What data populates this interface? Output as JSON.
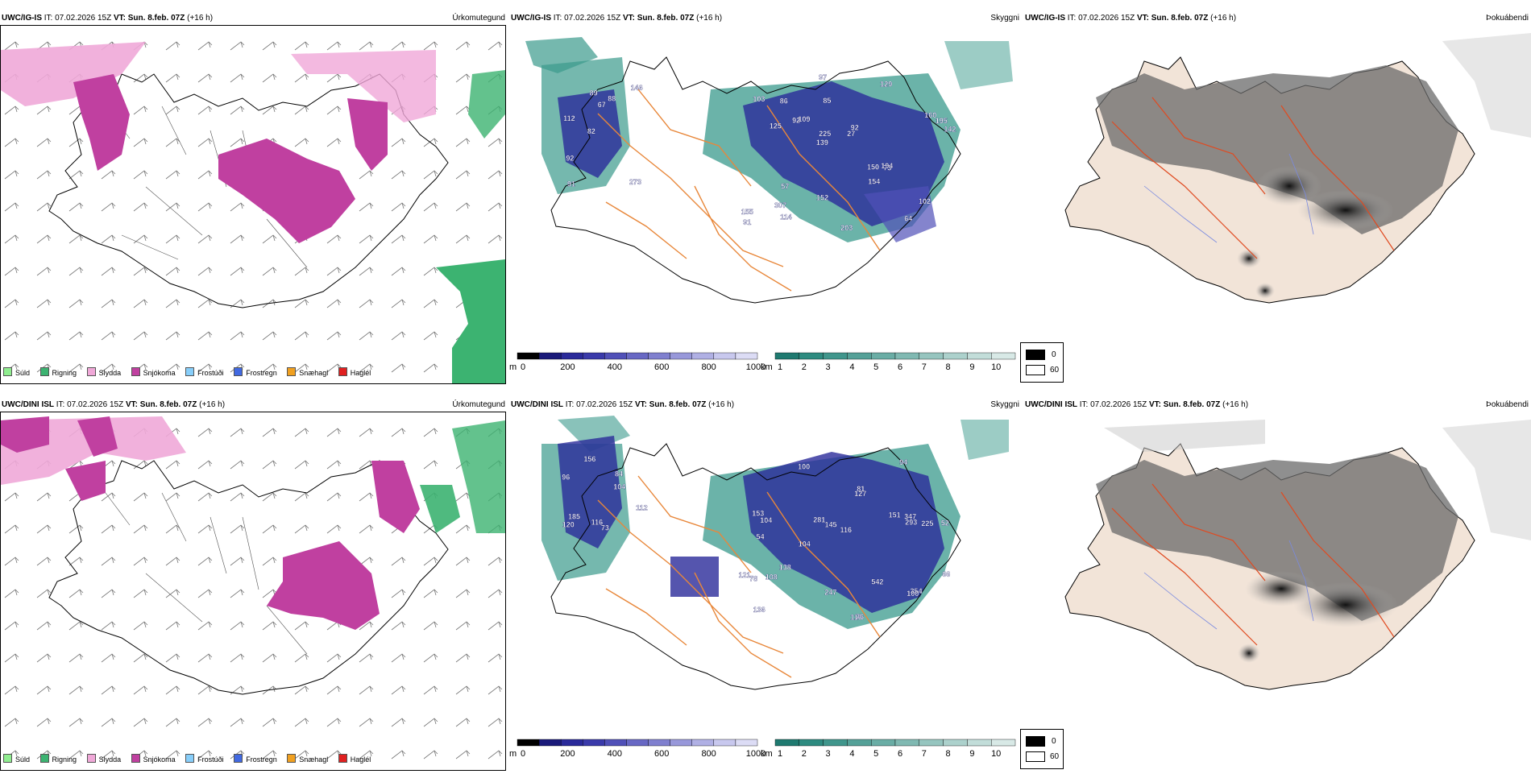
{
  "rows": [
    {
      "model": "UWC/IG-IS",
      "it_label": "IT:",
      "it_value": "07.02.2026 15Z",
      "vt_label": "VT:",
      "vt_value": "Sun. 8.feb. 07Z",
      "lead": "(+16 h)"
    },
    {
      "model": "UWC/DINI ISL",
      "it_label": "IT:",
      "it_value": "07.02.2026 15Z",
      "vt_label": "VT:",
      "vt_value": "Sun. 8.feb. 07Z",
      "lead": "(+16 h)"
    }
  ],
  "panel_tags": {
    "precip_type": "Úrkomutegund",
    "visibility": "Skyggni",
    "fog": "Þokuábendi"
  },
  "precip_legend": [
    {
      "label": "Súld",
      "color": "#90ee90"
    },
    {
      "label": "Rigning",
      "color": "#3cb371"
    },
    {
      "label": "Slydda",
      "color": "#f0a8d8"
    },
    {
      "label": "Snjókoma",
      "color": "#c040a0"
    },
    {
      "label": "Frostúði",
      "color": "#87cefa"
    },
    {
      "label": "Frostregn",
      "color": "#4169e1"
    },
    {
      "label": "Snæhagl",
      "color": "#f0a020"
    },
    {
      "label": "Haglél",
      "color": "#e02020"
    }
  ],
  "ceiling_bar": {
    "unit": "m",
    "ticks": [
      "0",
      "200",
      "400",
      "600",
      "800",
      "1000"
    ],
    "colors": [
      "#000000",
      "#1a1a7a",
      "#2a2a9a",
      "#3a3aaa",
      "#5050b8",
      "#6868c4",
      "#8080cf",
      "#9898da",
      "#b0b0e4",
      "#c8c8ee",
      "#dcdcf5"
    ]
  },
  "vis_bar": {
    "unit": "km",
    "ticks": [
      "1",
      "2",
      "3",
      "4",
      "5",
      "6",
      "7",
      "8",
      "9",
      "10"
    ],
    "colors": [
      "#1f7a70",
      "#2e8b80",
      "#40968c",
      "#55a198",
      "#6aada5",
      "#80b9b2",
      "#96c5bf",
      "#acd1cc",
      "#c2ddd9",
      "#d8e9e6"
    ]
  },
  "fog_legend": {
    "high": "0",
    "low": "60"
  },
  "ceiling_labels_top": [
    "273",
    "112",
    "146",
    "82",
    "88",
    "91",
    "89",
    "67",
    "92",
    "109",
    "155",
    "307",
    "85",
    "92",
    "73",
    "103",
    "97",
    "142",
    "150",
    "160",
    "139",
    "152",
    "225",
    "86",
    "129",
    "57",
    "64",
    "102",
    "194",
    "203",
    "92",
    "125",
    "154",
    "114",
    "195",
    "27",
    "91"
  ],
  "ceiling_labels_bottom": [
    "156",
    "84",
    "112",
    "116",
    "73",
    "185",
    "96",
    "104",
    "120",
    "127",
    "116",
    "136",
    "100",
    "104",
    "116",
    "76",
    "247",
    "94",
    "151",
    "138",
    "104",
    "54",
    "52",
    "225",
    "121",
    "153",
    "145",
    "293",
    "354",
    "78",
    "100",
    "81",
    "108",
    "281",
    "542",
    "66",
    "347"
  ]
}
